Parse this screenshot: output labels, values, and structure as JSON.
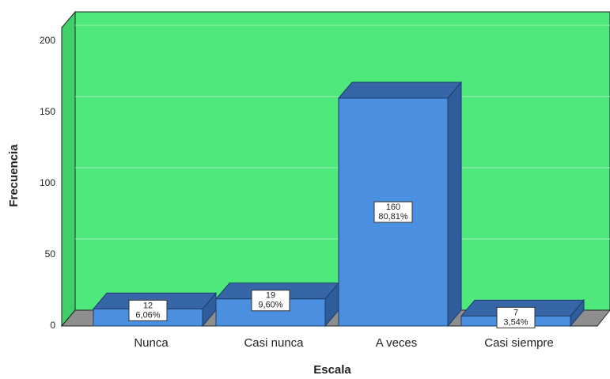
{
  "chart_data": {
    "type": "bar3d",
    "categories": [
      "Nunca",
      "Casi nunca",
      "A veces",
      "Casi siempre"
    ],
    "values": [
      12,
      19,
      160,
      7
    ],
    "percentages": [
      6.06,
      9.6,
      80.81,
      3.54
    ],
    "percentage_labels": [
      "6,06%",
      "9,60%",
      "80,81%",
      "3,54%"
    ],
    "color": "#4a8fe0",
    "xlabel": "Escala",
    "ylabel": "Frecuencia",
    "ylim": [
      0,
      210
    ],
    "yticks": [
      0,
      50,
      100,
      150,
      200
    ],
    "grid": true
  }
}
